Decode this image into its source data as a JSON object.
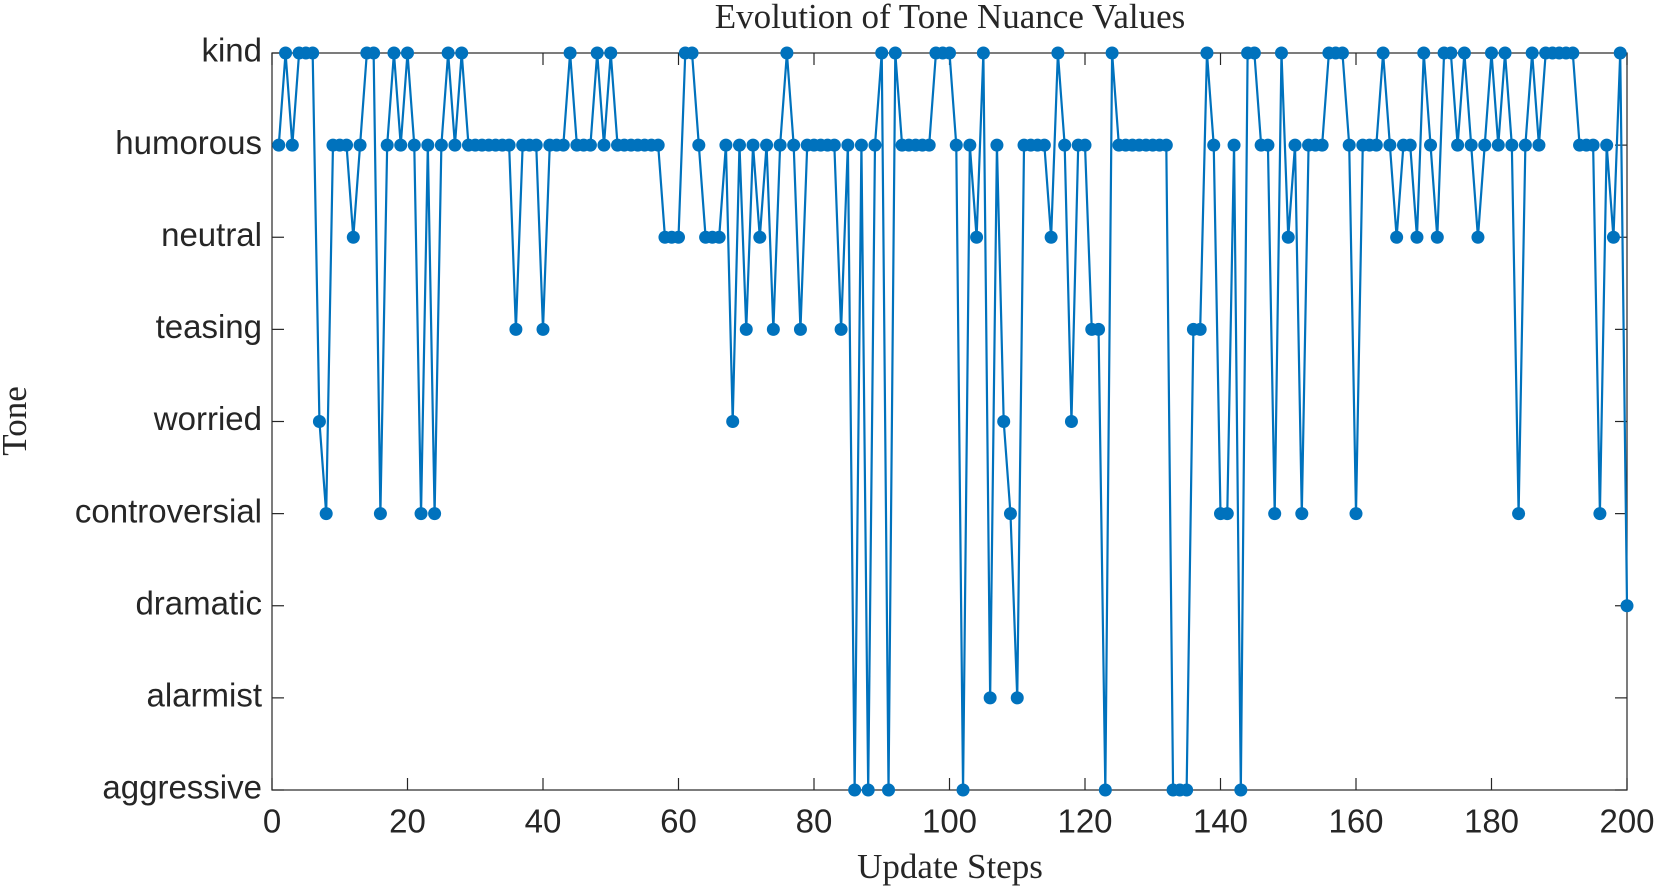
{
  "chart_data": {
    "type": "line",
    "title": "Evolution of Tone Nuance Values",
    "xlabel": "Update Steps",
    "ylabel": "Tone",
    "x": [
      1,
      2,
      3,
      4,
      5,
      6,
      7,
      8,
      9,
      10,
      11,
      12,
      13,
      14,
      15,
      16,
      17,
      18,
      19,
      20,
      21,
      22,
      23,
      24,
      25,
      26,
      27,
      28,
      29,
      30,
      31,
      32,
      33,
      34,
      35,
      36,
      37,
      38,
      39,
      40,
      41,
      42,
      43,
      44,
      45,
      46,
      47,
      48,
      49,
      50,
      51,
      52,
      53,
      54,
      55,
      56,
      57,
      58,
      59,
      60,
      61,
      62,
      63,
      64,
      65,
      66,
      67,
      68,
      69,
      70,
      71,
      72,
      73,
      74,
      75,
      76,
      77,
      78,
      79,
      80,
      81,
      82,
      83,
      84,
      85,
      86,
      87,
      88,
      89,
      90,
      91,
      92,
      93,
      94,
      95,
      96,
      97,
      98,
      99,
      100,
      101,
      102,
      103,
      104,
      105,
      106,
      107,
      108,
      109,
      110,
      111,
      112,
      113,
      114,
      115,
      116,
      117,
      118,
      119,
      120,
      121,
      122,
      123,
      124,
      125,
      126,
      127,
      128,
      129,
      130,
      131,
      132,
      133,
      134,
      135,
      136,
      137,
      138,
      139,
      140,
      141,
      142,
      143,
      144,
      145,
      146,
      147,
      148,
      149,
      150,
      151,
      152,
      153,
      154,
      155,
      156,
      157,
      158,
      159,
      160,
      161,
      162,
      163,
      164,
      165,
      166,
      167,
      168,
      169,
      170,
      171,
      172,
      173,
      174,
      175,
      176,
      177,
      178,
      179,
      180,
      181,
      182,
      183,
      184,
      185,
      186,
      187,
      188,
      189,
      190,
      191,
      192,
      193,
      194,
      195,
      196,
      197,
      198,
      199,
      200
    ],
    "series": [
      {
        "name": "Tone",
        "color": "#0072bd",
        "values": [
          8,
          9,
          8,
          9,
          9,
          9,
          5,
          4,
          8,
          8,
          8,
          7,
          8,
          9,
          9,
          4,
          8,
          9,
          8,
          9,
          8,
          4,
          8,
          4,
          8,
          9,
          8,
          9,
          8,
          8,
          8,
          8,
          8,
          8,
          8,
          6,
          8,
          8,
          8,
          6,
          8,
          8,
          8,
          9,
          8,
          8,
          8,
          9,
          8,
          9,
          8,
          8,
          8,
          8,
          8,
          8,
          8,
          7,
          7,
          7,
          9,
          9,
          8,
          7,
          7,
          7,
          8,
          5,
          8,
          6,
          8,
          7,
          8,
          6,
          8,
          9,
          8,
          6,
          8,
          8,
          8,
          8,
          8,
          6,
          8,
          1,
          8,
          1,
          8,
          9,
          1,
          9,
          8,
          8,
          8,
          8,
          8,
          9,
          9,
          9,
          8,
          1,
          8,
          7,
          9,
          2,
          8,
          5,
          4,
          2,
          8,
          8,
          8,
          8,
          7,
          9,
          8,
          5,
          8,
          8,
          6,
          6,
          1,
          9,
          8,
          8,
          8,
          8,
          8,
          8,
          8,
          8,
          1,
          1,
          1,
          6,
          6,
          9,
          8,
          4,
          4,
          8,
          1,
          9,
          9,
          8,
          8,
          4,
          9,
          7,
          8,
          4,
          8,
          8,
          8,
          9,
          9,
          9,
          8,
          4,
          8,
          8,
          8,
          9,
          8,
          7,
          8,
          8,
          7,
          9,
          8,
          7,
          9,
          9,
          8,
          9,
          8,
          7,
          8,
          9,
          8,
          9,
          8,
          4,
          8,
          9,
          8,
          9,
          9,
          9,
          9,
          9,
          8,
          8,
          8,
          4,
          8,
          7,
          9,
          3
        ]
      }
    ],
    "xlim": [
      0,
      200
    ],
    "xticks": [
      0,
      20,
      40,
      60,
      80,
      100,
      120,
      140,
      160,
      180,
      200
    ],
    "ylim": [
      1,
      9
    ],
    "yticks": [
      {
        "value": 1,
        "label": "aggressive"
      },
      {
        "value": 2,
        "label": "alarmist"
      },
      {
        "value": 3,
        "label": "dramatic"
      },
      {
        "value": 4,
        "label": "controversial"
      },
      {
        "value": 5,
        "label": "worried"
      },
      {
        "value": 6,
        "label": "teasing"
      },
      {
        "value": 7,
        "label": "neutral"
      },
      {
        "value": 8,
        "label": "humorous"
      },
      {
        "value": 9,
        "label": "kind"
      }
    ],
    "grid": false
  }
}
